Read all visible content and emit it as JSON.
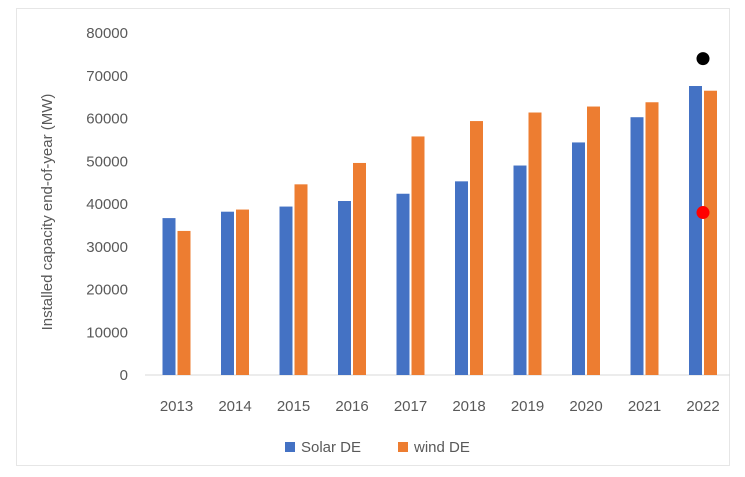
{
  "chart_data": {
    "type": "bar",
    "categories": [
      "2013",
      "2014",
      "2015",
      "2016",
      "2017",
      "2018",
      "2019",
      "2020",
      "2021",
      "2022"
    ],
    "series": [
      {
        "name": "Solar DE",
        "color": "#4472C4",
        "values": [
          36700,
          38200,
          39400,
          40700,
          42400,
          45300,
          49000,
          54400,
          60300,
          67600
        ]
      },
      {
        "name": "wind DE",
        "color": "#ED7D31",
        "values": [
          33700,
          38700,
          44600,
          49600,
          55800,
          59400,
          61400,
          62800,
          63800,
          66500
        ]
      }
    ],
    "markers": [
      {
        "category": "2022",
        "value": 74000,
        "color": "#000000"
      },
      {
        "category": "2022",
        "value": 38000,
        "color": "#FF0000"
      }
    ],
    "ylabel": "Installed capacity end-of-year (MW)",
    "xlabel": "",
    "title": "",
    "ylim": [
      0,
      80000
    ],
    "yticks": [
      "0",
      "10000",
      "20000",
      "30000",
      "40000",
      "50000",
      "60000",
      "70000",
      "80000"
    ],
    "grid": false,
    "legend": {
      "position": "bottom",
      "entries": [
        "Solar DE",
        "wind DE"
      ]
    }
  }
}
